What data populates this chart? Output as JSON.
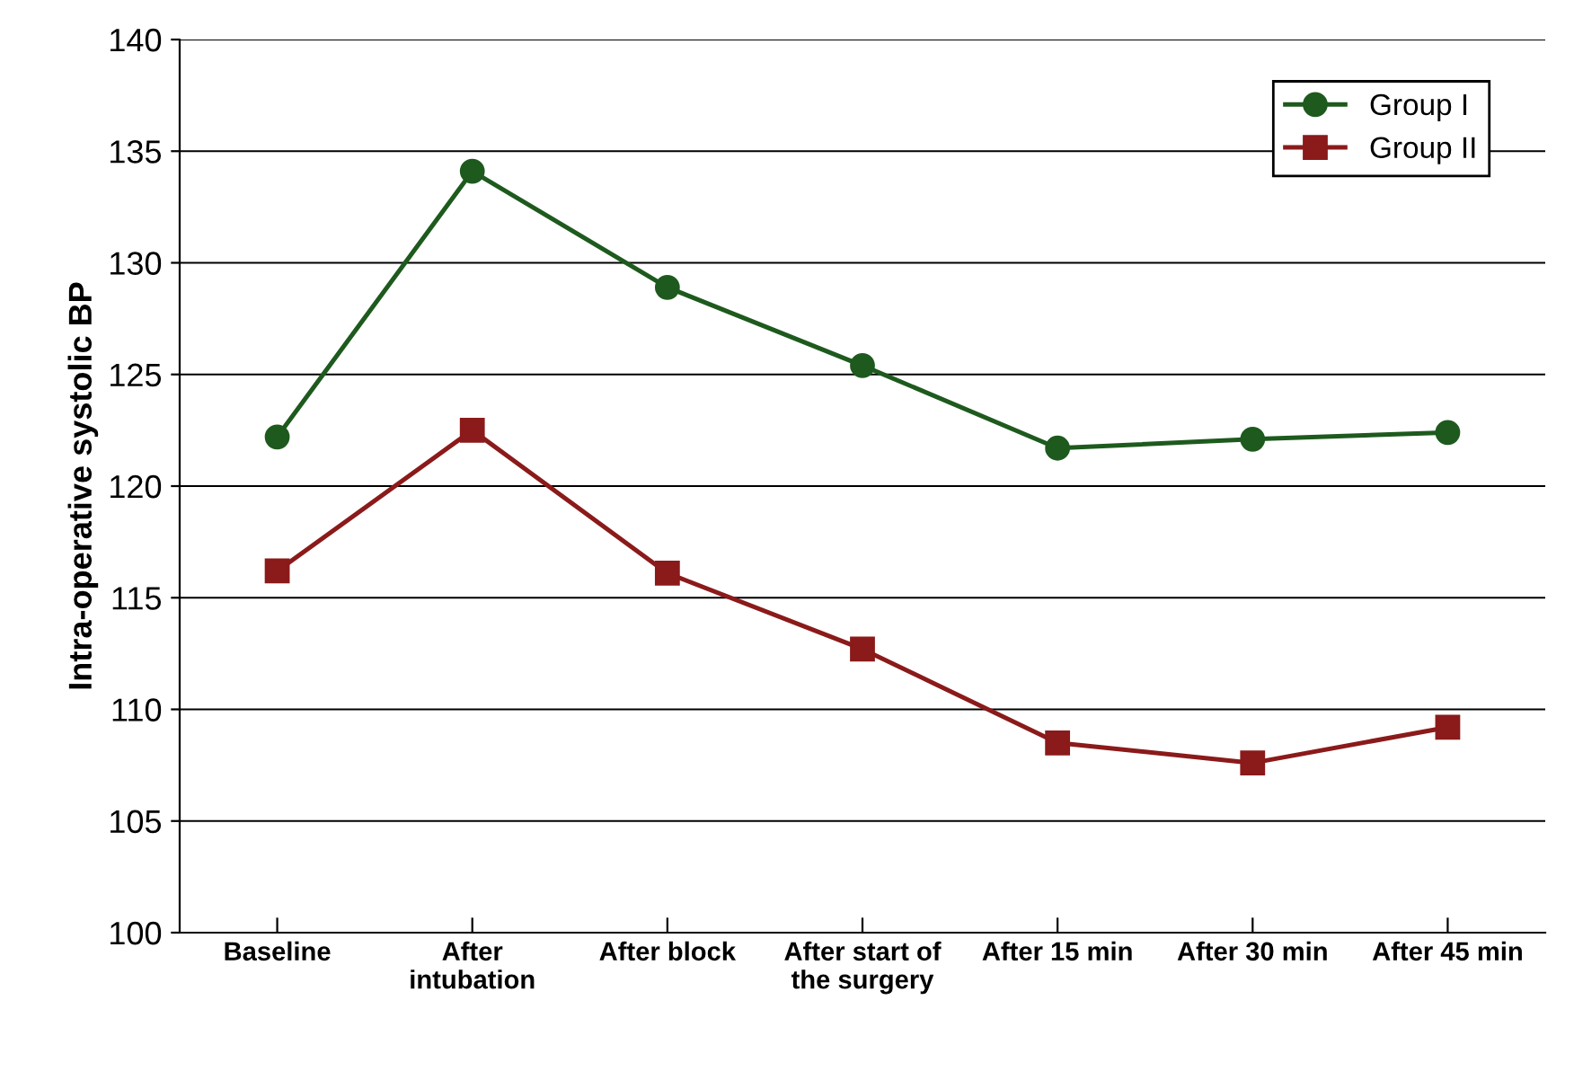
{
  "chart_data": {
    "type": "line",
    "ylabel": "Intra-operative systolic BP",
    "categories": [
      "Baseline",
      "After\nintubation",
      "After block",
      "After start of\nthe surgery",
      "After 15 min",
      "After 30 min",
      "After 45 min"
    ],
    "series": [
      {
        "name": "Group I",
        "color": "#1e5a1e",
        "marker": "circle",
        "values": [
          122.2,
          134.1,
          128.9,
          125.4,
          121.7,
          122.1,
          122.4
        ]
      },
      {
        "name": "Group II",
        "color": "#8b1a1a",
        "marker": "square",
        "values": [
          116.2,
          122.5,
          116.1,
          112.7,
          108.5,
          107.6,
          109.2
        ]
      }
    ],
    "ylim": [
      100,
      140
    ],
    "yticks": [
      100,
      105,
      110,
      115,
      120,
      125,
      130,
      135,
      140
    ],
    "grid": "y",
    "legend": "top right"
  }
}
